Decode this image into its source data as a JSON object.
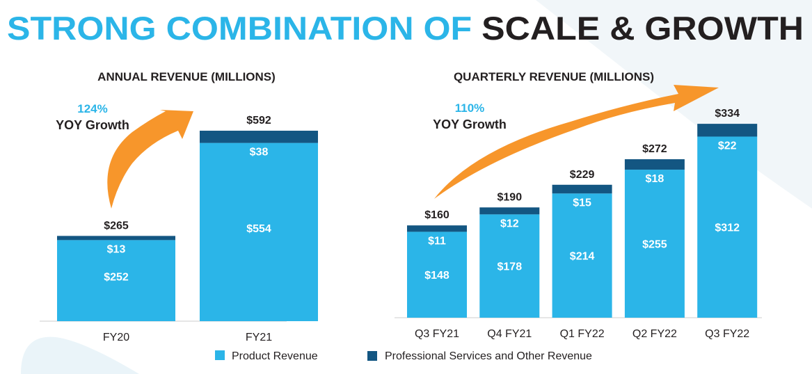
{
  "title": {
    "part1": "STRONG COMBINATION OF ",
    "part2": "SCALE & GROWTH"
  },
  "colors": {
    "product": "#2BB5E8",
    "services": "#135682",
    "accent": "#2BB5E8",
    "arrow": "#F7962B",
    "text": "#231F20",
    "bgshape": "#EEF4F7"
  },
  "legend": {
    "product": "Product Revenue",
    "services": "Professional Services and Other Revenue"
  },
  "chart_data": [
    {
      "type": "bar",
      "stacked": true,
      "title": "ANNUAL REVENUE (MILLIONS)",
      "growth": {
        "value": "124%",
        "label": "YOY Growth"
      },
      "categories": [
        "FY20",
        "FY21"
      ],
      "series": [
        {
          "name": "Product Revenue",
          "values": [
            252,
            554
          ],
          "labels": [
            "$252",
            "$554"
          ]
        },
        {
          "name": "Professional Services and Other Revenue",
          "values": [
            13,
            38
          ],
          "labels": [
            "$13",
            "$38"
          ]
        }
      ],
      "totals": [
        "$265",
        "$592"
      ],
      "ylim": [
        0,
        592
      ]
    },
    {
      "type": "bar",
      "stacked": true,
      "title": "QUARTERLY REVENUE (MILLIONS)",
      "growth": {
        "value": "110%",
        "label": "YOY Growth"
      },
      "categories": [
        "Q3 FY21",
        "Q4 FY21",
        "Q1 FY22",
        "Q2 FY22",
        "Q3 FY22"
      ],
      "series": [
        {
          "name": "Product Revenue",
          "values": [
            148,
            178,
            214,
            255,
            312
          ],
          "labels": [
            "$148",
            "$178",
            "$214",
            "$255",
            "$312"
          ]
        },
        {
          "name": "Professional Services and Other Revenue",
          "values": [
            11,
            12,
            15,
            18,
            22
          ],
          "labels": [
            "$11",
            "$12",
            "$15",
            "$18",
            "$22"
          ]
        }
      ],
      "totals": [
        "$160",
        "$190",
        "$229",
        "$272",
        "$334"
      ],
      "ylim": [
        0,
        334
      ]
    }
  ]
}
